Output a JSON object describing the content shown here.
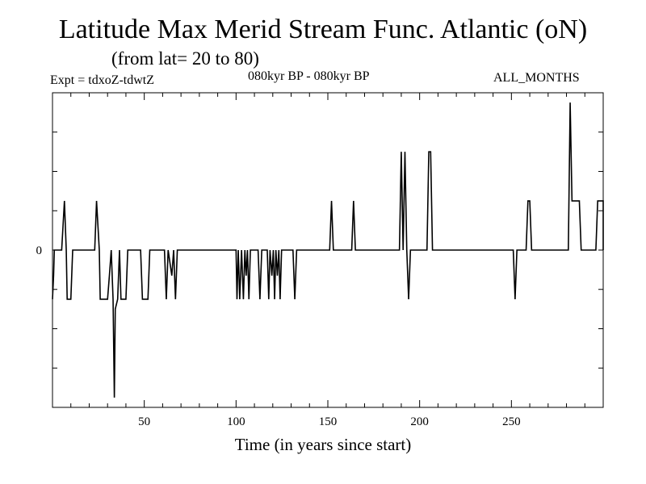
{
  "header": {
    "title": "Latitude Max Merid Stream Func. Atlantic (oN)",
    "subtitle": "(from lat= 20 to 80)",
    "expt": "Expt = tdxoZ-tdwtZ",
    "period": "080kyr BP - 080kyr BP",
    "months": "ALL_MONTHS"
  },
  "chart_data": {
    "type": "line",
    "title": "Latitude Max Merid Stream Func. Atlantic (oN)",
    "subtitle": "(from lat= 20 to 80)",
    "xlabel": "Time (in years since start)",
    "ylabel": "",
    "xlim": [
      0,
      300
    ],
    "ylim": [
      -8,
      8
    ],
    "x_ticks": [
      50,
      100,
      150,
      200,
      250
    ],
    "y_tick_labels": [
      {
        "value": 0,
        "label": "0"
      }
    ],
    "grid": false,
    "series": [
      {
        "points": [
          [
            0,
            -2.5
          ],
          [
            0.6,
            -1.3
          ],
          [
            1,
            0
          ],
          [
            5,
            0
          ],
          [
            6.5,
            2.5
          ],
          [
            7.5,
            0
          ],
          [
            8,
            -2.5
          ],
          [
            10,
            -2.5
          ],
          [
            11,
            0
          ],
          [
            23,
            0
          ],
          [
            24,
            2.5
          ],
          [
            25.5,
            0
          ],
          [
            26,
            -2.5
          ],
          [
            30,
            -2.5
          ],
          [
            31,
            -1.3
          ],
          [
            32,
            0
          ],
          [
            33,
            -2.5
          ],
          [
            33.7,
            -7.5
          ],
          [
            34.2,
            -3
          ],
          [
            35.5,
            -2.5
          ],
          [
            36.5,
            0
          ],
          [
            37.3,
            -2.5
          ],
          [
            40,
            -2.5
          ],
          [
            41,
            0
          ],
          [
            48,
            0
          ],
          [
            49,
            -2.5
          ],
          [
            52,
            -2.5
          ],
          [
            53,
            0
          ],
          [
            61,
            0
          ],
          [
            62,
            -2.5
          ],
          [
            63,
            0
          ],
          [
            65,
            -1.3
          ],
          [
            66,
            0
          ],
          [
            67,
            -2.5
          ],
          [
            68,
            0
          ],
          [
            100,
            0
          ],
          [
            100.5,
            -2.5
          ],
          [
            101.2,
            0
          ],
          [
            102,
            -2.5
          ],
          [
            103,
            0
          ],
          [
            104,
            -2.5
          ],
          [
            104.8,
            0
          ],
          [
            105.5,
            -1.3
          ],
          [
            106.2,
            0
          ],
          [
            107,
            -2.5
          ],
          [
            107.8,
            0
          ],
          [
            112,
            0
          ],
          [
            113,
            -2.5
          ],
          [
            114,
            0
          ],
          [
            117,
            0
          ],
          [
            117.8,
            -2.5
          ],
          [
            118.5,
            0
          ],
          [
            119.5,
            -1.3
          ],
          [
            120.3,
            0
          ],
          [
            121,
            -2.5
          ],
          [
            121.7,
            0
          ],
          [
            122.5,
            -1.3
          ],
          [
            123.3,
            0
          ],
          [
            124,
            -2.5
          ],
          [
            124.8,
            0
          ],
          [
            131,
            0
          ],
          [
            132,
            -2.5
          ],
          [
            133,
            0
          ],
          [
            151,
            0
          ],
          [
            152,
            2.5
          ],
          [
            153,
            0
          ],
          [
            163,
            0
          ],
          [
            164,
            2.5
          ],
          [
            165,
            0
          ],
          [
            189,
            0
          ],
          [
            190,
            5
          ],
          [
            191,
            0
          ],
          [
            192,
            5
          ],
          [
            193,
            0
          ],
          [
            194,
            -2.5
          ],
          [
            195,
            0
          ],
          [
            204,
            0
          ],
          [
            205,
            5
          ],
          [
            206,
            5
          ],
          [
            207,
            0
          ],
          [
            251,
            0
          ],
          [
            252,
            -2.5
          ],
          [
            253,
            0
          ],
          [
            258,
            0
          ],
          [
            259,
            2.5
          ],
          [
            260,
            2.5
          ],
          [
            261,
            0
          ],
          [
            281,
            0
          ],
          [
            282,
            7.5
          ],
          [
            283,
            2.5
          ],
          [
            287,
            2.5
          ],
          [
            288,
            0
          ],
          [
            296,
            0
          ],
          [
            297,
            2.5
          ],
          [
            300,
            2.5
          ],
          [
            300,
            0
          ]
        ]
      }
    ]
  }
}
